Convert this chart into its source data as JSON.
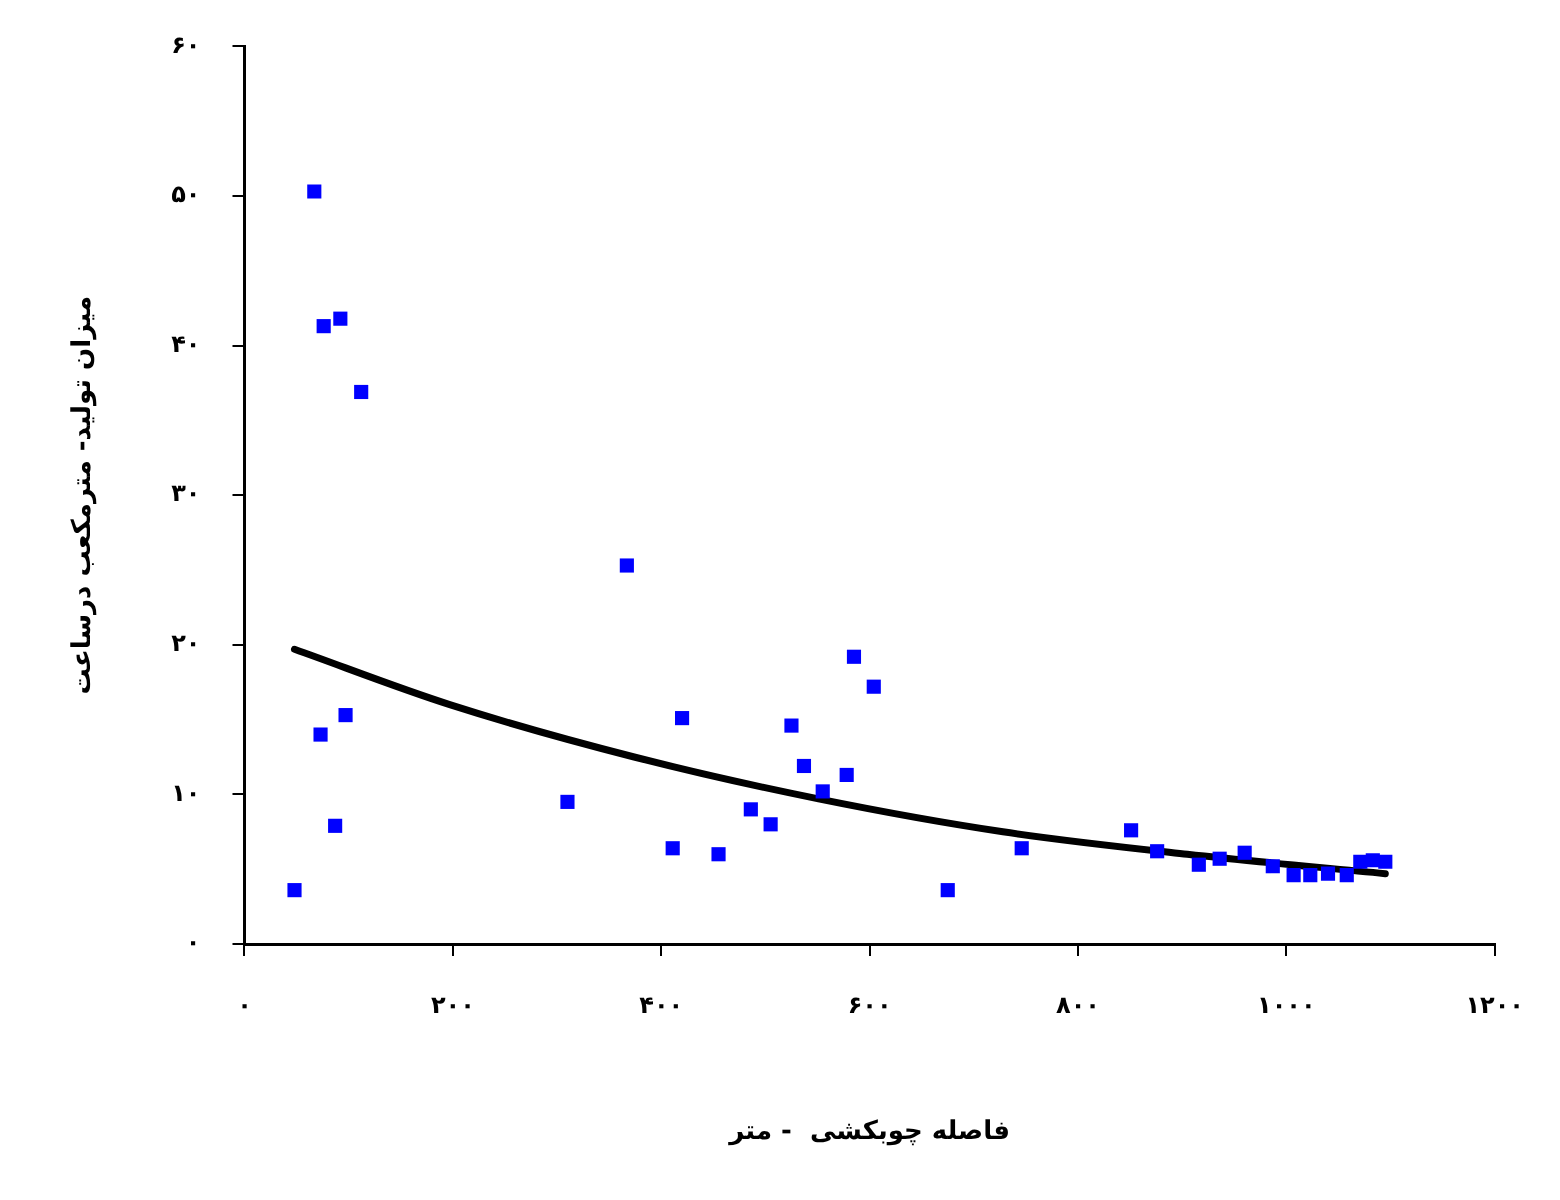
{
  "chart_data": {
    "type": "scatter",
    "xlabel": "فاصله چوبکشی  - متر",
    "ylabel": "میزان تولید- مترمکعب درساعت",
    "xlim": [
      0,
      1200
    ],
    "ylim": [
      0,
      60
    ],
    "xticks": [
      {
        "value": 0,
        "label": "۰"
      },
      {
        "value": 200,
        "label": "۲۰۰"
      },
      {
        "value": 400,
        "label": "۴۰۰"
      },
      {
        "value": 600,
        "label": "۶۰۰"
      },
      {
        "value": 800,
        "label": "۸۰۰"
      },
      {
        "value": 1000,
        "label": "۱۰۰۰"
      },
      {
        "value": 1200,
        "label": "۱۲۰۰"
      }
    ],
    "yticks": [
      {
        "value": 0,
        "label": "۰"
      },
      {
        "value": 10,
        "label": "۱۰"
      },
      {
        "value": 20,
        "label": "۲۰"
      },
      {
        "value": 30,
        "label": "۳۰"
      },
      {
        "value": 40,
        "label": "۴۰"
      },
      {
        "value": 50,
        "label": "۵۰"
      },
      {
        "value": 60,
        "label": "۶۰"
      }
    ],
    "grid": false,
    "legend": false,
    "marker": "square",
    "series": [
      {
        "color": "#0000ff",
        "x": [
          48,
          67,
          73,
          76,
          87,
          92,
          97,
          112,
          310,
          367,
          411,
          420,
          455,
          486,
          505,
          525,
          537,
          555,
          578,
          585,
          604,
          675,
          746,
          851,
          876,
          916,
          936,
          960,
          987,
          1007,
          1023,
          1040,
          1058,
          1071,
          1083,
          1095
        ],
        "values": [
          3.6,
          50.3,
          14.0,
          41.3,
          7.9,
          41.8,
          15.3,
          36.9,
          9.5,
          25.3,
          6.4,
          15.1,
          6.0,
          9.0,
          8.0,
          14.6,
          11.9,
          10.2,
          11.3,
          19.2,
          17.2,
          3.6,
          6.4,
          7.6,
          6.2,
          5.3,
          5.7,
          6.1,
          5.2,
          4.6,
          4.6,
          4.7,
          4.6,
          5.5,
          5.6,
          5.5
        ]
      },
      {
        "type": "line",
        "color": "#000000",
        "marker": "none",
        "line_style": "solid",
        "x": [
          48,
          197,
          374,
          551,
          728,
          905,
          1095
        ],
        "values": [
          19.7,
          16.0,
          12.5,
          9.7,
          7.5,
          6.0,
          4.7
        ]
      }
    ]
  }
}
